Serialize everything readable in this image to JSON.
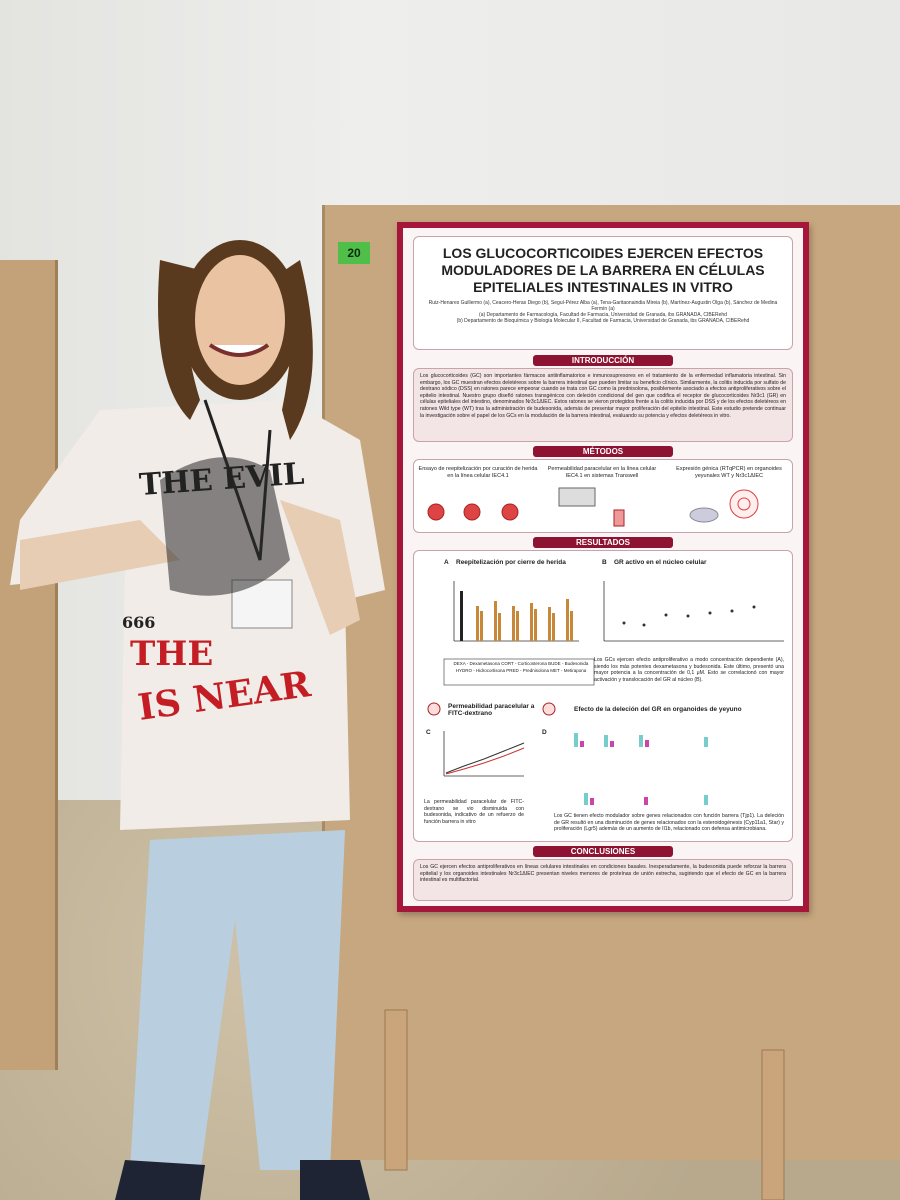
{
  "board_number": "20",
  "poster": {
    "title": "LOS GLUCOCORTICOIDES EJERCEN EFECTOS MODULADORES DE LA BARRERA EN CÉLULAS EPITELIALES INTESTINALES IN VITRO",
    "authors": "Ruiz-Henares Guillermo (a), Ceacero-Heras Diego (b), Seguí-Pérez Alba (a), Tena-Garitaonaindia Mireia (b), Martínez-Augustin Olga (b), Sánchez de Medina Fermín (a)",
    "affiliations": [
      "(a) Departamento de Farmacología, Facultad de Farmacia, Universidad de Granada, ibs GRANADA, CIBERehd",
      "(b) Departamento de Bioquímica y Biología Molecular II, Facultad de Farmacia, Universidad de Granada, ibs GRANADA, CIBERehd"
    ],
    "introduction": {
      "heading": "INTRODUCCIÓN",
      "text": "Los glucocorticoides (GC) son importantes fármacos antiinflamatorios e inmunosupresores en el tratamiento de la enfermedad inflamatoria intestinal. Sin embargo, los GC muestran efectos deletéreos sobre la barrera intestinal que pueden limitar su beneficio clínico. Similarmente, la colitis inducida por sulfato de dextrano sódico (DSS) en ratones parece empeorar cuando se trata con GC como la prednisolona, posiblemente asociado a efectos antiproliferativos sobre el epitelio intestinal. Nuestro grupo diseñó ratones transgénicos con deleción condicional del gen que codifica el receptor de glucocorticoides Nr3c1 (GR) en células epiteliales del intestino, denominados Nr3c1ΔIEC. Estos ratones se vieron protegidos frente a la colitis inducida por DSS y de los efectos deletéreos en ratones Wild type (WT) tras la administración de budesonida, además de presentar mayor proliferación del epitelio intestinal. Este estudio pretende continuar la investigación sobre el papel de los GCs en la modulación de la barrera intestinal, evaluando su potencia y efectos deletéreos in vitro."
    },
    "methods": {
      "heading": "MÉTODOS",
      "items": [
        "Ensayo de reepitelización por curación de herida en la línea celular IEC4.1",
        "Permeabilidad paracelular en la línea celular IEC4.1 en sistemas Transwell",
        "Expresión génica (RTqPCR) en organoides yeyunales WT y Nr3c1ΔIEC"
      ]
    },
    "results": {
      "heading": "RESULTADOS",
      "panels": [
        "Reepitelización por cierre de herida",
        "GR activo en el núcleo celular",
        "Permeabilidad paracelular a FITC-dextrano",
        "Efecto de la deleción del GR en organoides de yeyuno"
      ],
      "panel_letters": [
        "A",
        "B",
        "C",
        "D"
      ],
      "drug_key": "DEXA - Dexametasona  CORT - Corticosterona  BUDE - Budesonida  HYDRO - Hidrocortisona  PRED - Prednisolona  MET - Metirapona",
      "text_ab": "Los GCs ejercen efecto antiproliferativo a modo concentración dependiente (A), siendo los más potentes dexametasona y budesonida. Este último, presentó una mayor potencia a la concentración de 0,1 μM. Esto se correlacionó con mayor activación y translocación del GR al núcleo (B).",
      "text_c": "La permeabilidad paracelular de FITC-dextrano se vio disminuida con budesonida, indicativo de un refuerzo de función barrera in vitro",
      "text_d": "Los GC tienen efecto modulador sobre genes relacionados con función barrera (Tjp1). La deleción de GR resultó en una disminución de genes relacionados con la esteroidogénesis (Cyp11a1, Star) y proliferación (Lgr5) además de un aumento de Il1b, relacionado con defensa antimicrobiana."
    },
    "conclusions": {
      "heading": "CONCLUSIONES",
      "text": "Los GC ejercen efectos antiproliferativos en líneas celulares intestinales en condiciones basales. Inesperadamente, la budesonida puede reforzar la barrera epitelial y los organoides intestinales Nr3c1ΔIEC presentan niveles menores de proteínas de unión estrecha, sugiriendo que el efecto de GC en la barrera intestinal es multifactorial."
    }
  },
  "shirt_text": [
    "THE EVIL",
    "THE",
    "IS NEAR",
    "666"
  ]
}
